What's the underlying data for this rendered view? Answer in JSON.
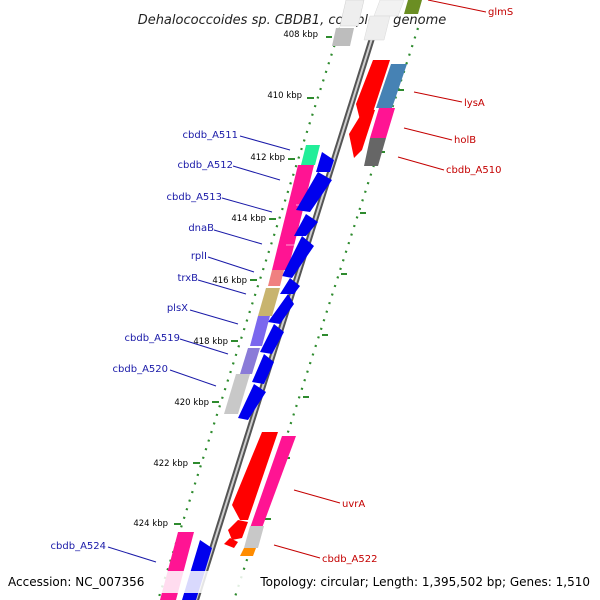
{
  "title": "Dehalococcoides sp. CBDB1, complete genome",
  "accession": "Accession: NC_007356",
  "topology": "Topology: circular; Length: 1,395,502 bp; Genes: 1,510",
  "ruler_labels": [
    "408 kbp",
    "410 kbp",
    "412 kbp",
    "414 kbp",
    "416 kbp",
    "418 kbp",
    "420 kbp",
    "422 kbp",
    "424 kbp"
  ],
  "left_genes": [
    "cbdb_A511",
    "cbdb_A512",
    "cbdb_A513",
    "dnaB",
    "rplI",
    "trxB",
    "plsX",
    "cbdb_A519",
    "cbdb_A520",
    "cbdb_A524"
  ],
  "right_genes": [
    "glmS",
    "lysA",
    "holB",
    "cbdb_A510",
    "uvrA",
    "cbdb_A522"
  ],
  "colors": {
    "left_label": "#1a1aa8",
    "right_label": "#c40000",
    "backbone": "#888888",
    "dots": "#2e8b2e",
    "pink": "#ff1493",
    "blue": "#0000ee",
    "red": "#ff0000",
    "green": "#22ee99",
    "steel": "#4682b4",
    "gray": "#666666",
    "olive": "#c8b46e",
    "violet": "#7b68ee",
    "lightgray": "#c8c8c8",
    "orange": "#ff8c00",
    "salmon": "#f08080",
    "khaki": "#6b8e23"
  }
}
